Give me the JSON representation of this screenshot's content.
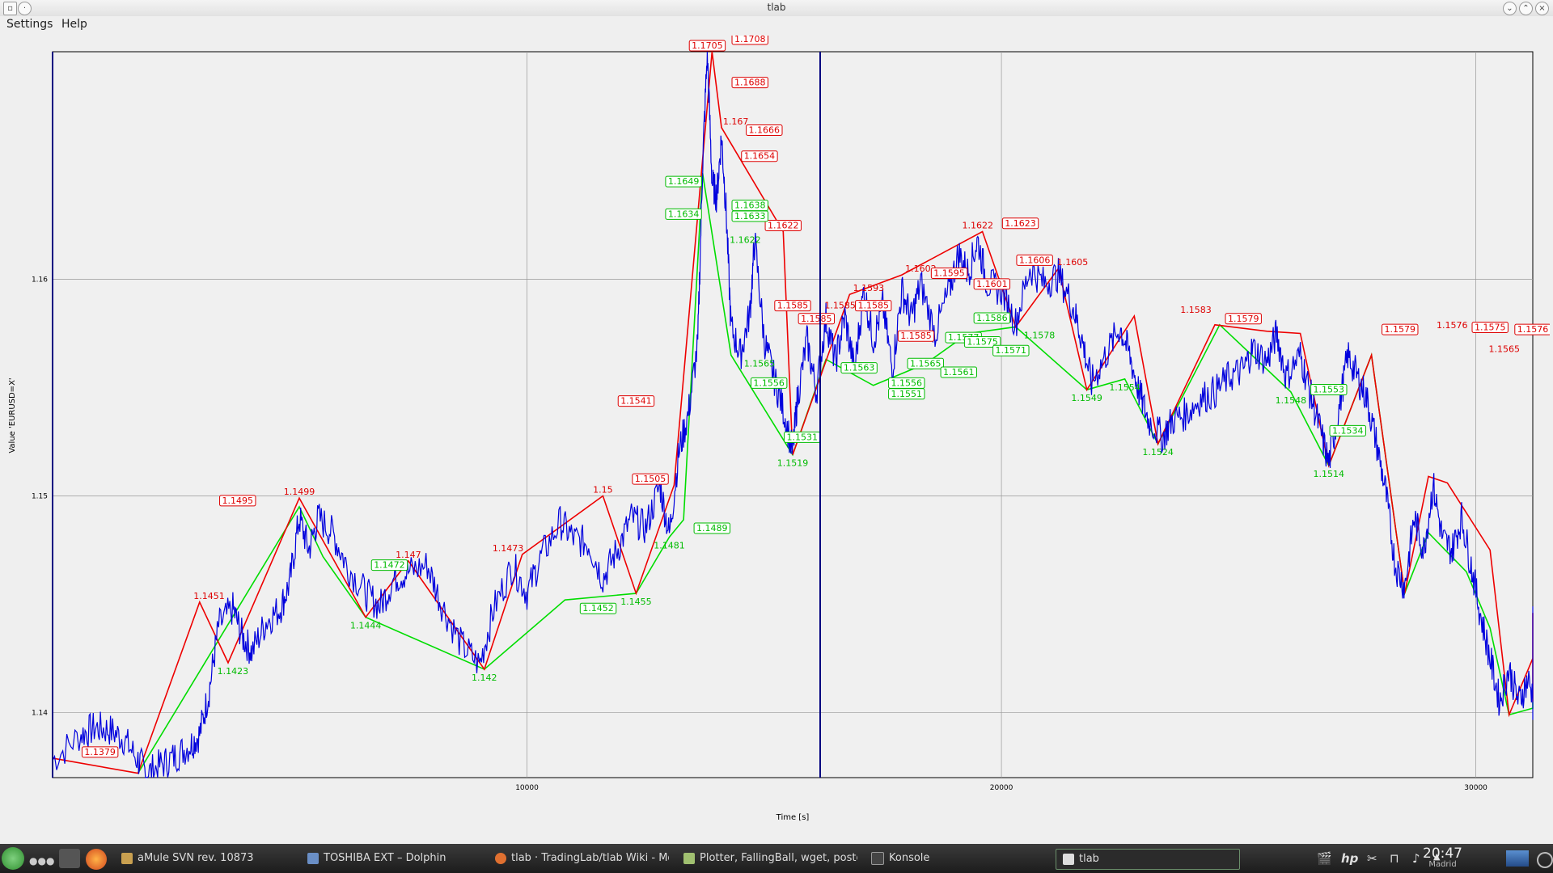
{
  "window": {
    "title": "tlab"
  },
  "menu": {
    "settings": "Settings",
    "help": "Help"
  },
  "plot": {
    "xlabel": "Time [s]",
    "ylabel": "Value 'EURUSD=X'",
    "x_ticks": [
      "10000",
      "20000",
      "30000"
    ],
    "y_ticks": [
      "1.14",
      "1.15",
      "1.16"
    ],
    "colors": {
      "price": "#0000dd",
      "up": "#00dd00",
      "down": "#ee0000",
      "cyan": "#00cccc",
      "axis": "#000080"
    }
  },
  "chart_data": {
    "type": "line",
    "xlabel": "Time [s]",
    "ylabel": "Value 'EURUSD=X'",
    "xlim": [
      0,
      31200
    ],
    "ylim": [
      1.137,
      1.1705
    ],
    "x_ticks": [
      10000,
      20000,
      30000
    ],
    "y_ticks": [
      1.14,
      1.15,
      1.16
    ],
    "series": [
      {
        "values": [
          [
            0,
            1.1378
          ],
          [
            600,
            1.139
          ],
          [
            900,
            1.1393
          ],
          [
            1200,
            1.1392
          ],
          [
            1500,
            1.1388
          ],
          [
            1800,
            1.1378
          ],
          [
            2000,
            1.1372
          ],
          [
            2300,
            1.1376
          ],
          [
            2600,
            1.138
          ],
          [
            2900,
            1.1385
          ],
          [
            3100,
            1.139
          ],
          [
            3300,
            1.141
          ],
          [
            3500,
            1.144
          ],
          [
            3800,
            1.1448
          ],
          [
            4000,
            1.1435
          ],
          [
            4200,
            1.1428
          ],
          [
            4500,
            1.1442
          ],
          [
            4800,
            1.1448
          ],
          [
            5000,
            1.146
          ],
          [
            5200,
            1.149
          ],
          [
            5400,
            1.1475
          ],
          [
            5600,
            1.149
          ],
          [
            5900,
            1.1483
          ],
          [
            6200,
            1.1468
          ],
          [
            6600,
            1.1455
          ],
          [
            6900,
            1.1449
          ],
          [
            7200,
            1.1462
          ],
          [
            7500,
            1.1465
          ],
          [
            7900,
            1.1468
          ],
          [
            8200,
            1.145
          ],
          [
            8600,
            1.1432
          ],
          [
            9000,
            1.1422
          ],
          [
            9300,
            1.1448
          ],
          [
            9700,
            1.1468
          ],
          [
            10000,
            1.1455
          ],
          [
            10300,
            1.1472
          ],
          [
            10700,
            1.1488
          ],
          [
            11000,
            1.148
          ],
          [
            11300,
            1.1478
          ],
          [
            11600,
            1.1462
          ],
          [
            11900,
            1.1475
          ],
          [
            12200,
            1.149
          ],
          [
            12500,
            1.1485
          ],
          [
            12800,
            1.1505
          ],
          [
            13000,
            1.1482
          ],
          [
            13200,
            1.152
          ],
          [
            13400,
            1.1538
          ],
          [
            13600,
            1.157
          ],
          [
            13700,
            1.1652
          ],
          [
            13800,
            1.1705
          ],
          [
            13900,
            1.1645
          ],
          [
            14000,
            1.1638
          ],
          [
            14100,
            1.1666
          ],
          [
            14200,
            1.163
          ],
          [
            14300,
            1.1578
          ],
          [
            14500,
            1.1565
          ],
          [
            14700,
            1.1585
          ],
          [
            14800,
            1.1618
          ],
          [
            15000,
            1.1572
          ],
          [
            15200,
            1.1555
          ],
          [
            15400,
            1.154
          ],
          [
            15600,
            1.152
          ],
          [
            15700,
            1.1545
          ],
          [
            15900,
            1.1572
          ],
          [
            16100,
            1.1548
          ],
          [
            16300,
            1.1582
          ],
          [
            16500,
            1.1562
          ],
          [
            16700,
            1.1583
          ],
          [
            16900,
            1.1558
          ],
          [
            17100,
            1.1595
          ],
          [
            17300,
            1.1572
          ],
          [
            17500,
            1.1588
          ],
          [
            17700,
            1.1558
          ],
          [
            17900,
            1.1595
          ],
          [
            18100,
            1.1582
          ],
          [
            18300,
            1.1598
          ],
          [
            18600,
            1.1575
          ],
          [
            18900,
            1.1595
          ],
          [
            19100,
            1.1612
          ],
          [
            19300,
            1.1603
          ],
          [
            19500,
            1.1618
          ],
          [
            19700,
            1.1598
          ],
          [
            20000,
            1.1595
          ],
          [
            20300,
            1.158
          ],
          [
            20600,
            1.1605
          ],
          [
            20900,
            1.1598
          ],
          [
            21200,
            1.1602
          ],
          [
            21500,
            1.1588
          ],
          [
            21700,
            1.1572
          ],
          [
            21900,
            1.1552
          ],
          [
            22200,
            1.1565
          ],
          [
            22500,
            1.1578
          ],
          [
            22700,
            1.1565
          ],
          [
            22900,
            1.1548
          ],
          [
            23100,
            1.1535
          ],
          [
            23400,
            1.1527
          ],
          [
            23600,
            1.1535
          ],
          [
            23900,
            1.1538
          ],
          [
            24200,
            1.1545
          ],
          [
            24500,
            1.1548
          ],
          [
            24800,
            1.1555
          ],
          [
            25100,
            1.1558
          ],
          [
            25300,
            1.1568
          ],
          [
            25600,
            1.1562
          ],
          [
            25800,
            1.1575
          ],
          [
            26000,
            1.1555
          ],
          [
            26300,
            1.1565
          ],
          [
            26500,
            1.1548
          ],
          [
            26700,
            1.1532
          ],
          [
            26900,
            1.1515
          ],
          [
            27100,
            1.1538
          ],
          [
            27300,
            1.1565
          ],
          [
            27500,
            1.1555
          ],
          [
            27700,
            1.1545
          ],
          [
            27900,
            1.1525
          ],
          [
            28100,
            1.1502
          ],
          [
            28300,
            1.1468
          ],
          [
            28500,
            1.1458
          ],
          [
            28700,
            1.149
          ],
          [
            28900,
            1.1475
          ],
          [
            29100,
            1.1505
          ],
          [
            29300,
            1.148
          ],
          [
            29500,
            1.1475
          ],
          [
            29700,
            1.149
          ],
          [
            29900,
            1.1468
          ],
          [
            30100,
            1.1445
          ],
          [
            30300,
            1.1425
          ],
          [
            30500,
            1.1405
          ],
          [
            30700,
            1.142
          ],
          [
            30900,
            1.1405
          ],
          [
            31100,
            1.1415
          ],
          [
            31300,
            1.1402
          ],
          [
            31500,
            1.1408
          ],
          [
            31700,
            1.1445
          ],
          [
            31900,
            1.1428
          ],
          [
            32100,
            1.144
          ],
          [
            32300,
            1.1425
          ]
        ]
      }
    ],
    "zigzag_up": [
      [
        1800,
        1.1372
      ],
      [
        5200,
        1.1495
      ],
      [
        5700,
        1.1472
      ],
      [
        6600,
        1.1444
      ],
      [
        9100,
        1.142
      ],
      [
        10800,
        1.1452
      ],
      [
        12300,
        1.1455
      ],
      [
        13000,
        1.1481
      ],
      [
        13300,
        1.1489
      ],
      [
        13700,
        1.1649
      ],
      [
        14300,
        1.1565
      ],
      [
        15600,
        1.1519
      ],
      [
        16300,
        1.1563
      ],
      [
        17300,
        1.1551
      ],
      [
        18400,
        1.1561
      ],
      [
        19300,
        1.1575
      ],
      [
        20300,
        1.1578
      ],
      [
        21800,
        1.1549
      ],
      [
        22600,
        1.1554
      ],
      [
        23300,
        1.1524
      ],
      [
        24600,
        1.1579
      ],
      [
        26100,
        1.1548
      ],
      [
        26900,
        1.1514
      ],
      [
        27800,
        1.1565
      ],
      [
        28500,
        1.1455
      ],
      [
        29000,
        1.1483
      ],
      [
        29800,
        1.1465
      ],
      [
        30300,
        1.1439
      ],
      [
        30700,
        1.1399
      ],
      [
        31500,
        1.1402
      ],
      [
        31900,
        1.1405
      ]
    ],
    "zigzag_down": [
      [
        0,
        1.1379
      ],
      [
        1800,
        1.1372
      ],
      [
        3100,
        1.1451
      ],
      [
        3700,
        1.1423
      ],
      [
        5200,
        1.1499
      ],
      [
        6600,
        1.1444
      ],
      [
        7500,
        1.147
      ],
      [
        9100,
        1.142
      ],
      [
        9900,
        1.1473
      ],
      [
        11600,
        1.15
      ],
      [
        12300,
        1.1455
      ],
      [
        13100,
        1.1505
      ],
      [
        13900,
        1.1705
      ],
      [
        14100,
        1.167
      ],
      [
        15400,
        1.1622
      ],
      [
        15600,
        1.1519
      ],
      [
        16800,
        1.1593
      ],
      [
        17900,
        1.1602
      ],
      [
        19600,
        1.1622
      ],
      [
        20300,
        1.1578
      ],
      [
        21200,
        1.1605
      ],
      [
        21800,
        1.1549
      ],
      [
        22800,
        1.1583
      ],
      [
        23300,
        1.1524
      ],
      [
        24500,
        1.1579
      ],
      [
        25600,
        1.1576
      ],
      [
        26300,
        1.1575
      ],
      [
        26900,
        1.1514
      ],
      [
        27800,
        1.1565
      ],
      [
        28500,
        1.1455
      ],
      [
        29000,
        1.1509
      ],
      [
        29400,
        1.1506
      ],
      [
        30300,
        1.1475
      ],
      [
        30700,
        1.1399
      ],
      [
        31200,
        1.1425
      ],
      [
        31900,
        1.1446
      ],
      [
        32300,
        1.1405
      ]
    ],
    "labels_red": [
      {
        "x": 1000,
        "y": 1.1379,
        "text": "1.1379",
        "box": true
      },
      {
        "x": 3300,
        "y": 1.1451,
        "text": "1.1451"
      },
      {
        "x": 3900,
        "y": 1.1495,
        "text": "1.1495",
        "box": true
      },
      {
        "x": 5200,
        "y": 1.1499,
        "text": "1.1499"
      },
      {
        "x": 7500,
        "y": 1.147,
        "text": "1.147"
      },
      {
        "x": 9600,
        "y": 1.1473,
        "text": "1.1473"
      },
      {
        "x": 11600,
        "y": 1.15,
        "text": "1.15"
      },
      {
        "x": 12600,
        "y": 1.1505,
        "text": "1.1505",
        "box": true
      },
      {
        "x": 12300,
        "y": 1.1541,
        "text": "1.1541",
        "box": true
      },
      {
        "x": 13800,
        "y": 1.1705,
        "text": "1.1705",
        "box": true
      },
      {
        "x": 14700,
        "y": 1.1708,
        "text": "1.1708",
        "box": true
      },
      {
        "x": 14700,
        "y": 1.1688,
        "text": "1.1688",
        "box": true
      },
      {
        "x": 14400,
        "y": 1.167,
        "text": "1.167"
      },
      {
        "x": 15000,
        "y": 1.1666,
        "text": "1.1666",
        "box": true
      },
      {
        "x": 14900,
        "y": 1.1654,
        "text": "1.1654",
        "box": true
      },
      {
        "x": 15400,
        "y": 1.1622,
        "text": "1.1622",
        "box": true
      },
      {
        "x": 15600,
        "y": 1.1585,
        "text": "1.1585",
        "box": true
      },
      {
        "x": 16100,
        "y": 1.1579,
        "text": "1.1585",
        "box": true
      },
      {
        "x": 16600,
        "y": 1.1585,
        "text": "1.1585"
      },
      {
        "x": 17200,
        "y": 1.1593,
        "text": "1.1593"
      },
      {
        "x": 17300,
        "y": 1.1585,
        "text": "1.1585",
        "box": true
      },
      {
        "x": 18300,
        "y": 1.1602,
        "text": "1.1602"
      },
      {
        "x": 18900,
        "y": 1.16,
        "text": "1.1595",
        "box": true
      },
      {
        "x": 19500,
        "y": 1.1622,
        "text": "1.1622"
      },
      {
        "x": 20400,
        "y": 1.1623,
        "text": "1.1623",
        "box": true
      },
      {
        "x": 20700,
        "y": 1.1606,
        "text": "1.1606",
        "box": true
      },
      {
        "x": 19800,
        "y": 1.1595,
        "text": "1.1601",
        "box": true
      },
      {
        "x": 18200,
        "y": 1.1571,
        "text": "1.1585",
        "box": true
      },
      {
        "x": 21500,
        "y": 1.1605,
        "text": "1.1605"
      },
      {
        "x": 24100,
        "y": 1.1583,
        "text": "1.1583"
      },
      {
        "x": 25100,
        "y": 1.1579,
        "text": "1.1579",
        "box": true
      },
      {
        "x": 28400,
        "y": 1.1574,
        "text": "1.1579",
        "box": true
      },
      {
        "x": 29500,
        "y": 1.1576,
        "text": "1.1576"
      },
      {
        "x": 30300,
        "y": 1.1575,
        "text": "1.1575",
        "box": true
      },
      {
        "x": 30600,
        "y": 1.1565,
        "text": "1.1565"
      },
      {
        "x": 31400,
        "y": 1.1574,
        "text": "1.1576",
        "box": true
      }
    ],
    "labels_green": [
      {
        "x": 3800,
        "y": 1.1423,
        "text": "1.1423"
      },
      {
        "x": 6600,
        "y": 1.1444,
        "text": "1.1444"
      },
      {
        "x": 7100,
        "y": 1.1472,
        "text": "1.1472",
        "box": true
      },
      {
        "x": 9100,
        "y": 1.142,
        "text": "1.142"
      },
      {
        "x": 11500,
        "y": 1.1452,
        "text": "1.1452",
        "box": true
      },
      {
        "x": 12300,
        "y": 1.1455,
        "text": "1.1455"
      },
      {
        "x": 13000,
        "y": 1.1481,
        "text": "1.1481"
      },
      {
        "x": 13900,
        "y": 1.1489,
        "text": "1.1489",
        "box": true
      },
      {
        "x": 13300,
        "y": 1.1649,
        "text": "1.1649",
        "box": true
      },
      {
        "x": 13300,
        "y": 1.1634,
        "text": "1.1634",
        "box": true
      },
      {
        "x": 14600,
        "y": 1.1622,
        "text": "1.1622"
      },
      {
        "x": 14700,
        "y": 1.1638,
        "text": "1.1638",
        "box": true
      },
      {
        "x": 14700,
        "y": 1.1633,
        "text": "1.1633",
        "box": true
      },
      {
        "x": 14900,
        "y": 1.1565,
        "text": "1.1565"
      },
      {
        "x": 15100,
        "y": 1.1556,
        "text": "1.1556",
        "box": true
      },
      {
        "x": 15800,
        "y": 1.1531,
        "text": "1.1531",
        "box": true
      },
      {
        "x": 15600,
        "y": 1.1519,
        "text": "1.1519"
      },
      {
        "x": 17000,
        "y": 1.1563,
        "text": "1.1563",
        "box": true
      },
      {
        "x": 18000,
        "y": 1.1551,
        "text": "1.1551",
        "box": true
      },
      {
        "x": 18000,
        "y": 1.1556,
        "text": "1.1556",
        "box": true
      },
      {
        "x": 18400,
        "y": 1.1565,
        "text": "1.1565",
        "box": true
      },
      {
        "x": 19100,
        "y": 1.1561,
        "text": "1.1561",
        "box": true
      },
      {
        "x": 19200,
        "y": 1.1577,
        "text": "1.1577",
        "box": true
      },
      {
        "x": 19600,
        "y": 1.1575,
        "text": "1.1575",
        "box": true
      },
      {
        "x": 19800,
        "y": 1.1586,
        "text": "1.1586",
        "box": true
      },
      {
        "x": 20200,
        "y": 1.1571,
        "text": "1.1571",
        "box": true
      },
      {
        "x": 20800,
        "y": 1.1578,
        "text": "1.1578"
      },
      {
        "x": 21800,
        "y": 1.1549,
        "text": "1.1549"
      },
      {
        "x": 22600,
        "y": 1.1554,
        "text": "1.1554"
      },
      {
        "x": 23300,
        "y": 1.1524,
        "text": "1.1524"
      },
      {
        "x": 26100,
        "y": 1.1548,
        "text": "1.1548"
      },
      {
        "x": 26900,
        "y": 1.1553,
        "text": "1.1553",
        "box": true
      },
      {
        "x": 27300,
        "y": 1.1534,
        "text": "1.1534",
        "box": true
      },
      {
        "x": 26900,
        "y": 1.1514,
        "text": "1.1514"
      }
    ]
  },
  "taskbar": {
    "tasks": [
      {
        "label": "aMule SVN rev. 10873"
      },
      {
        "label": "TOSHIBA EXT – Dolphin"
      },
      {
        "label": "tlab · TradingLab/tlab Wiki - Moz"
      },
      {
        "label": "Plotter, FallingBall, wget, postg"
      },
      {
        "label": "Konsole"
      },
      {
        "label": "tlab"
      }
    ],
    "clock": {
      "time": "20:47",
      "place": "Madrid"
    }
  }
}
